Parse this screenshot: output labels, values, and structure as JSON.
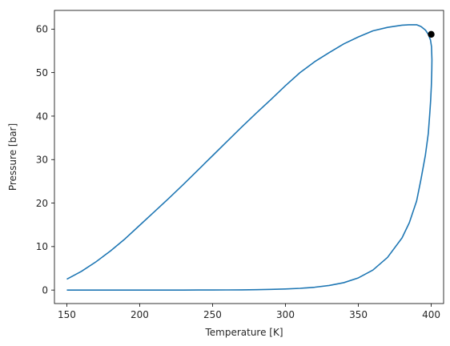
{
  "chart_data": {
    "type": "line",
    "title": "",
    "xlabel": "Temperature [K]",
    "ylabel": "Pressure [bar]",
    "xlim": [
      141.5,
      408.5
    ],
    "ylim": [
      -3.1,
      64.3
    ],
    "grid": false,
    "legend": "none",
    "xticks": [
      150,
      200,
      250,
      300,
      350,
      400
    ],
    "yticks": [
      0,
      10,
      20,
      30,
      40,
      50,
      60
    ],
    "series": [
      {
        "color": "#1f77b4",
        "x": [
          150,
          160,
          170,
          180,
          190,
          200,
          210,
          220,
          230,
          240,
          250,
          260,
          270,
          280,
          290,
          300,
          310,
          320,
          330,
          340,
          350,
          360,
          370,
          380,
          385,
          390,
          393,
          396,
          398,
          399.5,
          400.2,
          400.5,
          400.4,
          400.1,
          399.6,
          399,
          398,
          396,
          393,
          390,
          385,
          380,
          370,
          360,
          350,
          340,
          330,
          320,
          310,
          300,
          290,
          280,
          270,
          260,
          250,
          240,
          230,
          220,
          210,
          200,
          190,
          180,
          170,
          160,
          150
        ],
        "y": [
          2.5,
          4.3,
          6.5,
          9.0,
          11.8,
          14.9,
          18.0,
          21.1,
          24.3,
          27.6,
          30.9,
          34.2,
          37.5,
          40.7,
          43.8,
          47.0,
          50.0,
          52.5,
          54.6,
          56.6,
          58.2,
          59.6,
          60.4,
          60.9,
          61.0,
          61.0,
          60.6,
          59.8,
          58.8,
          57.5,
          56.0,
          53.0,
          50.5,
          47.0,
          43.5,
          40.5,
          36.0,
          31.0,
          25.5,
          20.5,
          15.5,
          12.0,
          7.5,
          4.6,
          2.8,
          1.7,
          1.05,
          0.65,
          0.4,
          0.25,
          0.15,
          0.08,
          0.05,
          0.03,
          0.02,
          0.01,
          0.005,
          0.003,
          0.002,
          0.001,
          0.0005,
          0.0002,
          0.0001,
          0.0,
          0.0
        ]
      }
    ],
    "markers": [
      {
        "x": 400.0,
        "y": 58.8,
        "color": "#000000"
      }
    ]
  }
}
